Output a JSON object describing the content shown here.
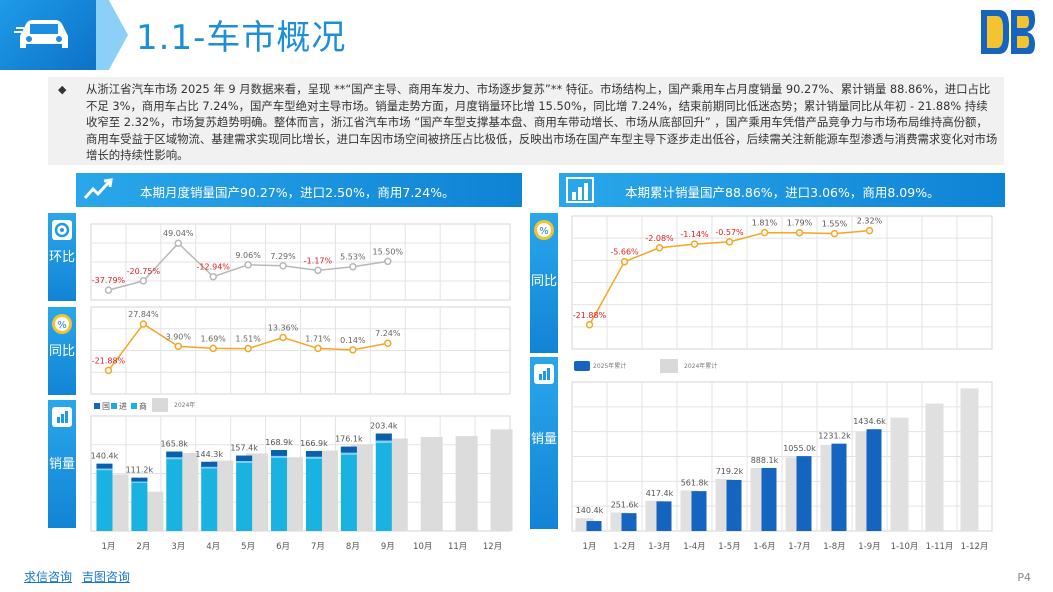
{
  "header": {
    "title": "1.1-车市概况"
  },
  "summary": {
    "bullet": "◆",
    "text": "从浙江省汽车市场 2025 年 9 月数据来看，呈现 **“国产主导、商用车发力、市场逐步复苏”** 特征。市场结构上，国产乘用车占月度销量 90.27%、累计销量 88.86%，进口占比不足 3%，商用车占比 7.24%，国产车型绝对主导市场。销量走势方面，月度销量环比增 15.50%，同比增 7.24%，结束前期同比低迷态势；累计销量同比从年初 - 21.88% 持续收窄至 2.32%，市场复苏趋势明确。整体而言，浙江省汽车市场 “国产车型支撑基本盘、商用车带动增长、市场从底部回升” ，国产乘用车凭借产品竞争力与市场布局维持高份额，商用车受益于区域物流、基建需求实现同比增长，进口车因市场空间被挤压占比极低，反映出市场在国产车型主导下逐步走出低谷，后续需关注新能源车型渗透与消费需求变化对市场增长的持续性影响。"
  },
  "left_panel": {
    "heading": "本期月度销量国产90.27%，进口2.50%，商用7.24%。",
    "tabs": {
      "mom": "环比",
      "yoy": "同比",
      "sales": "销量"
    }
  },
  "right_panel": {
    "heading": "本期累计销量国产88.86%，进口3.06%，商用8.09%。",
    "tabs": {
      "yoy": "同比",
      "sales": "销量"
    }
  },
  "footer": {
    "link1": "求信咨询",
    "link2": "吉图咨询",
    "page": "P4"
  },
  "colors": {
    "accent": "#1e9be8",
    "dark_blue": "#1565c0",
    "cyan": "#1ab2e0",
    "grey": "#d9d9d9",
    "orange": "#f5a623",
    "negative": "#e02020"
  },
  "chart_data": [
    {
      "id": "monthly_mom",
      "type": "line",
      "categories": [
        "1月",
        "2月",
        "3月",
        "4月",
        "5月",
        "6月",
        "7月",
        "8月",
        "9月",
        "10月",
        "11月",
        "12月"
      ],
      "values": [
        -37.79,
        -20.75,
        49.04,
        -12.94,
        9.06,
        7.29,
        -1.17,
        5.53,
        15.5,
        null,
        null,
        null
      ],
      "labels": [
        "-37.79%",
        "-20.75%",
        "49.04%",
        "-12.94%",
        "9.06%",
        "7.29%",
        "-1.17%",
        "5.53%",
        "15.50%"
      ]
    },
    {
      "id": "monthly_yoy",
      "type": "line",
      "categories": [
        "1月",
        "2月",
        "3月",
        "4月",
        "5月",
        "6月",
        "7月",
        "8月",
        "9月",
        "10月",
        "11月",
        "12月"
      ],
      "values": [
        -21.88,
        27.84,
        3.9,
        1.69,
        1.51,
        13.36,
        1.71,
        0.14,
        7.24,
        null,
        null,
        null
      ],
      "labels": [
        "-21.88%",
        "27.84%",
        "3.90%",
        "1.69%",
        "1.51%",
        "13.36%",
        "1.71%",
        "0.14%",
        "7.24%"
      ]
    },
    {
      "id": "monthly_sales",
      "type": "bar",
      "categories": [
        "1月",
        "2月",
        "3月",
        "4月",
        "5月",
        "6月",
        "7月",
        "8月",
        "9月",
        "10月",
        "11月",
        "12月"
      ],
      "legend": [
        "国",
        "进",
        "商",
        "2024年"
      ],
      "totals_2025": [
        140.4,
        111.2,
        165.8,
        144.3,
        157.4,
        168.9,
        166.9,
        176.1,
        203.4,
        null,
        null,
        null
      ],
      "labels_2025": [
        "140.4k",
        "111.2k",
        "165.8k",
        "144.3k",
        "157.4k",
        "168.9k",
        "166.9k",
        "176.1k",
        "203.4k"
      ],
      "share_domestic": 0.9027,
      "share_import": 0.025,
      "share_commercial": 0.0724,
      "values_2024": [
        118,
        82,
        163,
        147,
        162,
        154,
        168,
        181,
        193,
        196,
        198,
        212
      ]
    },
    {
      "id": "cumulative_yoy",
      "type": "line",
      "categories": [
        "1月",
        "1-2月",
        "1-3月",
        "1-4月",
        "1-5月",
        "1-6月",
        "1-7月",
        "1-8月",
        "1-9月",
        "1-10月",
        "1-11月",
        "1-12月"
      ],
      "values": [
        -21.88,
        -5.66,
        -2.08,
        -1.14,
        -0.57,
        1.81,
        1.79,
        1.55,
        2.32,
        null,
        null,
        null
      ],
      "labels": [
        "-21.88%",
        "-5.66%",
        "-2.08%",
        "-1.14%",
        "-0.57%",
        "1.81%",
        "1.79%",
        "1.55%",
        "2.32%"
      ]
    },
    {
      "id": "cumulative_sales",
      "type": "bar",
      "categories": [
        "1月",
        "1-2月",
        "1-3月",
        "1-4月",
        "1-5月",
        "1-6月",
        "1-7月",
        "1-8月",
        "1-9月",
        "1-10月",
        "1-11月",
        "1-12月"
      ],
      "legend": [
        "2025年累计",
        "2024年累计"
      ],
      "values_2025": [
        140.4,
        251.6,
        417.4,
        561.8,
        719.2,
        888.1,
        1055.0,
        1231.2,
        1434.6,
        null,
        null,
        null
      ],
      "labels_2025": [
        "140.4k",
        "251.6k",
        "417.4k",
        "561.8k",
        "719.2k",
        "888.1k",
        "1055.0k",
        "1231.2k",
        "1434.6k"
      ],
      "values_2024": [
        180,
        262,
        425,
        572,
        734,
        888,
        1037,
        1212,
        1402,
        1598,
        1797,
        2009
      ]
    }
  ]
}
